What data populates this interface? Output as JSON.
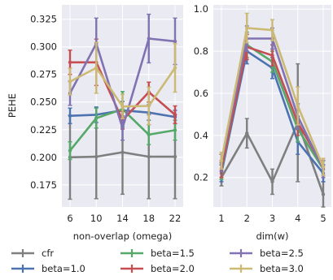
{
  "chart_data": [
    {
      "type": "line",
      "xlabel": "non-overlap (omega)",
      "ylabel": "PEHE",
      "x": [
        6,
        10,
        14,
        18,
        22
      ],
      "xticks": [
        "6",
        "10",
        "14",
        "18",
        "22"
      ],
      "ylim": [
        0.155,
        0.338
      ],
      "yticks": [
        "0.175",
        "0.200",
        "0.225",
        "0.250",
        "0.275",
        "0.300",
        "0.325"
      ],
      "grid": true,
      "series": [
        {
          "name": "cfr",
          "color": "#7f7f7f",
          "values": [
            0.2,
            0.2005,
            0.2045,
            0.2005,
            0.2005
          ],
          "err": [
            0.038,
            0.038,
            0.038,
            0.038,
            0.038
          ]
        },
        {
          "name": "beta=1.0",
          "color": "#4c72b0",
          "values": [
            0.2375,
            0.2385,
            0.2425,
            0.2405,
            0.2365
          ],
          "err": [
            0.007,
            0.007,
            0.008,
            0.007,
            0.006
          ]
        },
        {
          "name": "beta=1.5",
          "color": "#55a868",
          "values": [
            0.206,
            0.2355,
            0.2435,
            0.2205,
            0.2245
          ],
          "err": [
            0.008,
            0.009,
            0.016,
            0.009,
            0.009
          ]
        },
        {
          "name": "beta=2.0",
          "color": "#c44e52",
          "values": [
            0.286,
            0.286,
            0.2335,
            0.259,
            0.2385
          ],
          "err": [
            0.011,
            0.021,
            0.008,
            0.009,
            0.008
          ]
        },
        {
          "name": "beta=2.5",
          "color": "#8172b2",
          "values": [
            0.258,
            0.303,
            0.2265,
            0.3075,
            0.305
          ],
          "err": [
            0.011,
            0.023,
            0.011,
            0.022,
            0.021
          ]
        },
        {
          "name": "beta=3.0",
          "color": "#ccb974",
          "values": [
            0.2685,
            0.281,
            0.246,
            0.2465,
            0.281
          ],
          "err": [
            0.012,
            0.023,
            0.011,
            0.017,
            0.022
          ]
        }
      ]
    },
    {
      "type": "line",
      "xlabel": "dim(w)",
      "ylabel": "",
      "x": [
        1,
        2,
        3,
        4,
        5
      ],
      "xticks": [
        "1",
        "2",
        "3",
        "4",
        "5"
      ],
      "ylim": [
        0.06,
        1.02
      ],
      "yticks": [
        "0.2",
        "0.4",
        "0.6",
        "0.8",
        "1.0"
      ],
      "grid": true,
      "series": [
        {
          "name": "cfr",
          "color": "#7f7f7f",
          "values": [
            0.2,
            0.41,
            0.18,
            0.46,
            0.12
          ],
          "err": [
            0.04,
            0.07,
            0.06,
            0.28,
            0.06
          ]
        },
        {
          "name": "beta=1.0",
          "color": "#4c72b0",
          "values": [
            0.22,
            0.8,
            0.72,
            0.37,
            0.22
          ],
          "err": [
            0.04,
            0.06,
            0.05,
            0.06,
            0.04
          ]
        },
        {
          "name": "beta=1.5",
          "color": "#55a868",
          "values": [
            0.23,
            0.83,
            0.75,
            0.43,
            0.24
          ],
          "err": [
            0.04,
            0.06,
            0.05,
            0.06,
            0.04
          ]
        },
        {
          "name": "beta=2.0",
          "color": "#c44e52",
          "values": [
            0.24,
            0.82,
            0.78,
            0.46,
            0.25
          ],
          "err": [
            0.04,
            0.06,
            0.05,
            0.06,
            0.04
          ]
        },
        {
          "name": "beta=2.5",
          "color": "#8172b2",
          "values": [
            0.27,
            0.86,
            0.86,
            0.49,
            0.24
          ],
          "err": [
            0.04,
            0.06,
            0.05,
            0.06,
            0.04
          ]
        },
        {
          "name": "beta=3.0",
          "color": "#ccb974",
          "values": [
            0.28,
            0.91,
            0.9,
            0.54,
            0.25
          ],
          "err": [
            0.04,
            0.07,
            0.05,
            0.09,
            0.04
          ]
        }
      ]
    }
  ],
  "legend": {
    "placement": "bottom",
    "entries": [
      {
        "name": "cfr",
        "color": "#7f7f7f"
      },
      {
        "name": "beta=1.5",
        "color": "#55a868"
      },
      {
        "name": "beta=2.5",
        "color": "#8172b2"
      },
      {
        "name": "beta=1.0",
        "color": "#4c72b0"
      },
      {
        "name": "beta=2.0",
        "color": "#c44e52"
      },
      {
        "name": "beta=3.0",
        "color": "#ccb974"
      }
    ]
  },
  "colors": {
    "panel_bg": "#eaeaf2",
    "grid": "#ffffff"
  }
}
